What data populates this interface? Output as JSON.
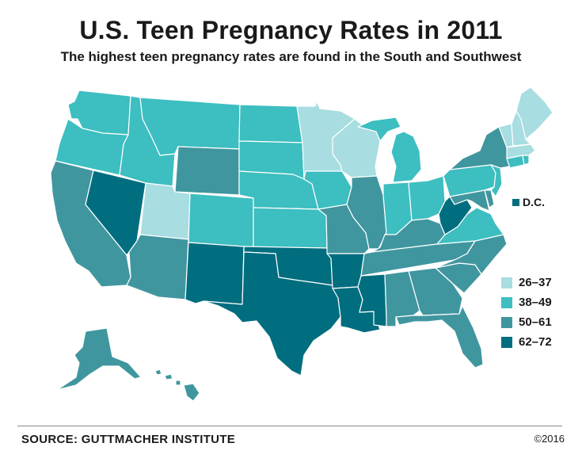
{
  "header": {
    "title": "U.S. Teen Pregnancy Rates in 2011",
    "subtitle": "The highest teen pregnancy rates are found in the South and Southwest"
  },
  "colors": {
    "range_26_37": "#a8dde1",
    "range_38_49": "#3dbec0",
    "range_50_61": "#40969f",
    "range_62_72": "#006e7f"
  },
  "legend": {
    "items": [
      {
        "label": "26–37",
        "color": "#a8dde1"
      },
      {
        "label": "38–49",
        "color": "#3dbec0"
      },
      {
        "label": "50–61",
        "color": "#40969f"
      },
      {
        "label": "62–72",
        "color": "#006e7f"
      }
    ]
  },
  "dc": {
    "label": "D.C.",
    "color": "#006e7f"
  },
  "states": [
    {
      "name": "Washington",
      "range": "38–49"
    },
    {
      "name": "Oregon",
      "range": "38–49"
    },
    {
      "name": "California",
      "range": "50–61"
    },
    {
      "name": "Nevada",
      "range": "62–72"
    },
    {
      "name": "Idaho",
      "range": "38–49"
    },
    {
      "name": "Montana",
      "range": "38–49"
    },
    {
      "name": "Wyoming",
      "range": "50–61"
    },
    {
      "name": "Utah",
      "range": "26–37"
    },
    {
      "name": "Arizona",
      "range": "50–61"
    },
    {
      "name": "Colorado",
      "range": "38–49"
    },
    {
      "name": "New Mexico",
      "range": "62–72"
    },
    {
      "name": "North Dakota",
      "range": "38–49"
    },
    {
      "name": "South Dakota",
      "range": "38–49"
    },
    {
      "name": "Nebraska",
      "range": "38–49"
    },
    {
      "name": "Kansas",
      "range": "38–49"
    },
    {
      "name": "Oklahoma",
      "range": "62–72"
    },
    {
      "name": "Texas",
      "range": "62–72"
    },
    {
      "name": "Minnesota",
      "range": "26–37"
    },
    {
      "name": "Iowa",
      "range": "38–49"
    },
    {
      "name": "Missouri",
      "range": "50–61"
    },
    {
      "name": "Arkansas",
      "range": "62–72"
    },
    {
      "name": "Louisiana",
      "range": "62–72"
    },
    {
      "name": "Wisconsin",
      "range": "26–37"
    },
    {
      "name": "Illinois",
      "range": "50–61"
    },
    {
      "name": "Michigan",
      "range": "38–49"
    },
    {
      "name": "Indiana",
      "range": "38–49"
    },
    {
      "name": "Ohio",
      "range": "38–49"
    },
    {
      "name": "Kentucky",
      "range": "50–61"
    },
    {
      "name": "Tennessee",
      "range": "50–61"
    },
    {
      "name": "Mississippi",
      "range": "62–72"
    },
    {
      "name": "Alabama",
      "range": "50–61"
    },
    {
      "name": "Georgia",
      "range": "50–61"
    },
    {
      "name": "Florida",
      "range": "50–61"
    },
    {
      "name": "South Carolina",
      "range": "50–61"
    },
    {
      "name": "North Carolina",
      "range": "50–61"
    },
    {
      "name": "Virginia",
      "range": "38–49"
    },
    {
      "name": "West Virginia",
      "range": "62–72"
    },
    {
      "name": "Maryland",
      "range": "50–61"
    },
    {
      "name": "Delaware",
      "range": "50–61"
    },
    {
      "name": "Pennsylvania",
      "range": "38–49"
    },
    {
      "name": "New Jersey",
      "range": "38–49"
    },
    {
      "name": "New York",
      "range": "50–61"
    },
    {
      "name": "Connecticut",
      "range": "38–49"
    },
    {
      "name": "Rhode Island",
      "range": "38–49"
    },
    {
      "name": "Massachusetts",
      "range": "26–37"
    },
    {
      "name": "Vermont",
      "range": "26–37"
    },
    {
      "name": "New Hampshire",
      "range": "26–37"
    },
    {
      "name": "Maine",
      "range": "26–37"
    },
    {
      "name": "Alaska",
      "range": "50–61"
    },
    {
      "name": "Hawaii",
      "range": "50–61"
    }
  ],
  "footer": {
    "source": "SOURCE: GUTTMACHER INSTITUTE",
    "copyright": "©2016"
  }
}
